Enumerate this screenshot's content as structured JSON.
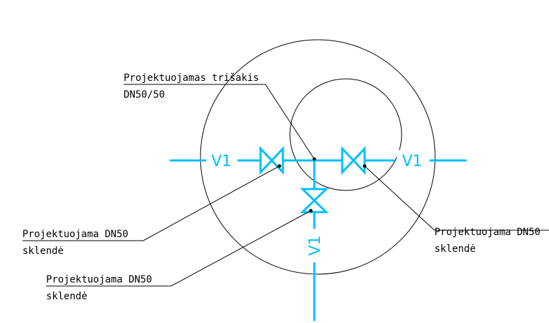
{
  "pipe_labels": [
    "V1",
    "V1",
    "V1"
  ],
  "callouts": [
    {
      "line1": "Projektuojamas trišakis",
      "line2": "DN50/50"
    },
    {
      "line1": "Projektuojama DN50",
      "line2": "sklendė"
    },
    {
      "line1": "Projektuojama DN50",
      "line2": "sklendė"
    },
    {
      "line1": "Projektuojama DN50",
      "line2": "sklendė"
    }
  ]
}
